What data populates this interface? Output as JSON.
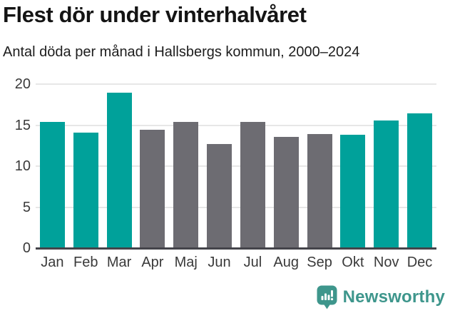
{
  "header": {
    "title": "Flest dör under vinterhalvåret",
    "subtitle": "Antal döda per månad i Hallsbergs kommun, 2000–2024"
  },
  "chart_data": {
    "type": "bar",
    "title": "Flest dör under vinterhalvåret",
    "subtitle": "Antal döda per månad i Hallsbergs kommun, 2000–2024",
    "categories": [
      "Jan",
      "Feb",
      "Mar",
      "Apr",
      "Maj",
      "Jun",
      "Jul",
      "Aug",
      "Sep",
      "Okt",
      "Nov",
      "Dec"
    ],
    "values": [
      15.4,
      14.1,
      19.0,
      14.4,
      15.4,
      12.7,
      15.4,
      13.6,
      13.9,
      13.8,
      15.6,
      16.4
    ],
    "bar_colors": [
      "#00a19a",
      "#00a19a",
      "#00a19a",
      "#6d6c72",
      "#6d6c72",
      "#6d6c72",
      "#6d6c72",
      "#6d6c72",
      "#6d6c72",
      "#00a19a",
      "#00a19a",
      "#00a19a"
    ],
    "highlighted_categories": [
      "Jan",
      "Feb",
      "Mar",
      "Okt",
      "Nov",
      "Dec"
    ],
    "xlabel": "",
    "ylabel": "",
    "ylim": [
      0,
      20
    ],
    "yticks": [
      0,
      5,
      10,
      15,
      20
    ],
    "grid": "horizontal",
    "legend": "none",
    "colors": {
      "highlight": "#00a19a",
      "default": "#6d6c72",
      "gridline": "#e7e7e7",
      "axis_line": "#44444a",
      "tick_label": "#3a3a3a"
    }
  },
  "footer": {
    "brand": "Newsworthy",
    "logo_icon": "speech-bubble-bar-chart-icon",
    "brand_color": "#3e968c"
  }
}
